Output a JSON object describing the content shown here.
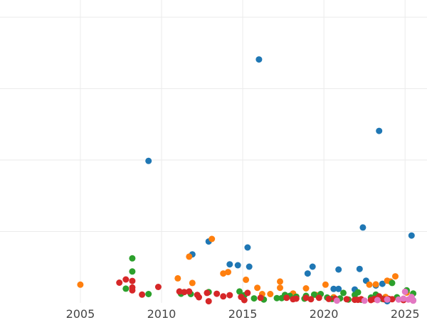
{
  "chart_data": {
    "type": "scatter",
    "title": "",
    "xlabel": "",
    "ylabel": "",
    "xlim": [
      2000.05,
      2026.35
    ],
    "ylim": [
      0,
      106
    ],
    "grid": true,
    "x_ticks": [
      2005,
      2010,
      2015,
      2020,
      2025
    ],
    "x_tick_labels": [
      "2005",
      "2010",
      "2015",
      "2020",
      "2025"
    ],
    "y_gridlines": [
      25,
      50,
      75,
      100
    ],
    "colors": {
      "blue": "#1f77b4",
      "orange": "#ff7f0e",
      "green": "#2ca02c",
      "red": "#d62728",
      "pink": "#e377c2"
    },
    "series": [
      {
        "color": "#1f77b4",
        "points": [
          [
            2009.2,
            49.7
          ],
          [
            2011.9,
            17.0
          ],
          [
            2012.9,
            21.5
          ],
          [
            2014.2,
            13.5
          ],
          [
            2014.7,
            13.2
          ],
          [
            2015.3,
            19.4
          ],
          [
            2015.4,
            12.7
          ],
          [
            2016.0,
            85.2
          ],
          [
            2019.0,
            10.3
          ],
          [
            2019.3,
            12.7
          ],
          [
            2020.6,
            4.9
          ],
          [
            2020.9,
            4.9
          ],
          [
            2020.9,
            11.7
          ],
          [
            2021.9,
            4.7
          ],
          [
            2022.2,
            11.9
          ],
          [
            2022.4,
            26.4
          ],
          [
            2022.6,
            7.8
          ],
          [
            2023.2,
            6.1
          ],
          [
            2023.4,
            60.2
          ],
          [
            2023.6,
            6.7
          ],
          [
            2023.9,
            0.6
          ],
          [
            2025.4,
            23.6
          ],
          [
            2025.5,
            0.9
          ]
        ]
      },
      {
        "color": "#ff7f0e",
        "points": [
          [
            2005.0,
            6.4
          ],
          [
            2011.0,
            8.6
          ],
          [
            2011.7,
            16.2
          ],
          [
            2011.9,
            7.0
          ],
          [
            2013.1,
            22.4
          ],
          [
            2013.8,
            10.3
          ],
          [
            2014.1,
            10.8
          ],
          [
            2015.2,
            8.1
          ],
          [
            2015.9,
            5.3
          ],
          [
            2016.2,
            3.1
          ],
          [
            2016.7,
            3.1
          ],
          [
            2017.3,
            5.3
          ],
          [
            2017.3,
            7.5
          ],
          [
            2018.1,
            3.3
          ],
          [
            2018.9,
            5.1
          ],
          [
            2019.5,
            2.8
          ],
          [
            2020.1,
            6.4
          ],
          [
            2020.6,
            2.0
          ],
          [
            2022.8,
            6.4
          ],
          [
            2023.2,
            6.5
          ],
          [
            2023.8,
            2.1
          ],
          [
            2023.9,
            7.8
          ],
          [
            2024.1,
            7.5
          ],
          [
            2024.4,
            9.3
          ],
          [
            2025.1,
            3.6
          ]
        ]
      },
      {
        "color": "#2ca02c",
        "points": [
          [
            2007.8,
            5.0
          ],
          [
            2008.2,
            11.0
          ],
          [
            2008.2,
            15.6
          ],
          [
            2009.2,
            3.1
          ],
          [
            2011.2,
            3.2
          ],
          [
            2011.8,
            3.1
          ],
          [
            2012.9,
            3.8
          ],
          [
            2014.8,
            4.0
          ],
          [
            2015.1,
            2.7
          ],
          [
            2015.7,
            1.6
          ],
          [
            2016.3,
            1.2
          ],
          [
            2017.1,
            1.7
          ],
          [
            2017.4,
            1.7
          ],
          [
            2017.6,
            2.8
          ],
          [
            2017.9,
            2.5
          ],
          [
            2018.3,
            2.2
          ],
          [
            2018.8,
            1.5
          ],
          [
            2018.9,
            2.5
          ],
          [
            2019.4,
            2.9
          ],
          [
            2019.8,
            3.1
          ],
          [
            2020.2,
            1.9
          ],
          [
            2020.5,
            1.4
          ],
          [
            2021.0,
            1.6
          ],
          [
            2021.2,
            3.5
          ],
          [
            2021.5,
            1.2
          ],
          [
            2021.9,
            2.8
          ],
          [
            2022.1,
            3.7
          ],
          [
            2022.3,
            1.1
          ],
          [
            2022.9,
            1.9
          ],
          [
            2023.2,
            2.9
          ],
          [
            2023.6,
            1.4
          ],
          [
            2024.2,
            7.0
          ],
          [
            2024.5,
            2.0
          ],
          [
            2025.1,
            4.4
          ],
          [
            2025.5,
            3.3
          ]
        ]
      },
      {
        "color": "#d62728",
        "points": [
          [
            2007.4,
            7.1
          ],
          [
            2007.8,
            8.2
          ],
          [
            2008.2,
            4.4
          ],
          [
            2008.2,
            7.7
          ],
          [
            2008.2,
            5.4
          ],
          [
            2008.8,
            2.9
          ],
          [
            2009.8,
            5.6
          ],
          [
            2011.1,
            4.0
          ],
          [
            2011.4,
            3.8
          ],
          [
            2011.7,
            4.0
          ],
          [
            2012.2,
            2.8
          ],
          [
            2012.3,
            2.0
          ],
          [
            2012.8,
            3.5
          ],
          [
            2012.9,
            0.6
          ],
          [
            2013.4,
            3.2
          ],
          [
            2013.8,
            2.3
          ],
          [
            2014.2,
            2.7
          ],
          [
            2014.9,
            2.1
          ],
          [
            2015.1,
            1.0
          ],
          [
            2015.3,
            3.5
          ],
          [
            2016.1,
            1.8
          ],
          [
            2017.7,
            1.8
          ],
          [
            2018.1,
            1.3
          ],
          [
            2018.3,
            1.5
          ],
          [
            2018.9,
            1.8
          ],
          [
            2019.2,
            1.3
          ],
          [
            2019.7,
            1.8
          ],
          [
            2020.3,
            1.4
          ],
          [
            2020.7,
            1.5
          ],
          [
            2021.4,
            1.3
          ],
          [
            2021.9,
            1.1
          ],
          [
            2022.1,
            1.1
          ],
          [
            2022.3,
            1.3
          ],
          [
            2022.9,
            1.0
          ],
          [
            2023.1,
            1.4
          ],
          [
            2023.4,
            2.3
          ],
          [
            2023.7,
            1.3
          ],
          [
            2024.0,
            1.4
          ],
          [
            2024.2,
            1.3
          ],
          [
            2024.9,
            1.0
          ]
        ]
      },
      {
        "color": "#e377c2",
        "points": [
          [
            2020.8,
            0.8
          ],
          [
            2022.5,
            0.8
          ],
          [
            2023.3,
            1.0
          ],
          [
            2023.9,
            1.2
          ],
          [
            2024.6,
            1.2
          ],
          [
            2024.9,
            1.5
          ],
          [
            2025.0,
            3.9
          ],
          [
            2025.2,
            1.2
          ],
          [
            2025.4,
            2.1
          ],
          [
            2025.5,
            0.8
          ]
        ]
      }
    ]
  }
}
